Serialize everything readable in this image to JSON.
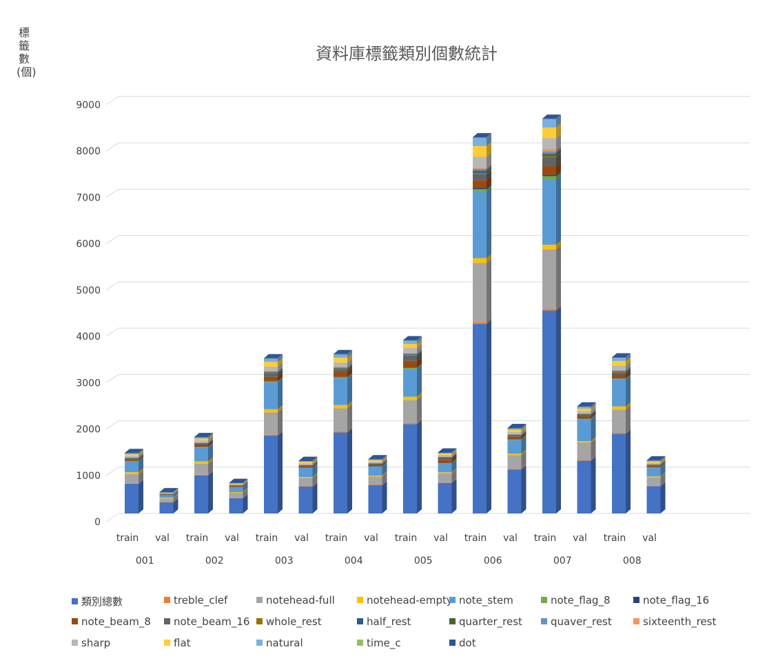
{
  "chart_data": {
    "type": "bar",
    "stacked": true,
    "title": "資料庫標籤類別個數統計",
    "ylabel": "標籤數(個)",
    "ylim": [
      0,
      9000
    ],
    "yticks": [
      0,
      1000,
      2000,
      3000,
      4000,
      5000,
      6000,
      7000,
      8000,
      9000
    ],
    "grid": true,
    "legend_position": "bottom",
    "groups": [
      "001",
      "002",
      "003",
      "004",
      "005",
      "006",
      "007",
      "008"
    ],
    "categories": [
      "train",
      "val",
      "train",
      "val",
      "train",
      "val",
      "train",
      "val",
      "train",
      "val",
      "train",
      "val",
      "train",
      "val",
      "train",
      "val"
    ],
    "series": [
      {
        "name": "類別總數",
        "color": "#4472c4",
        "values": [
          640,
          240,
          820,
          330,
          1680,
          580,
          1750,
          610,
          1930,
          660,
          4090,
          950,
          4380,
          1140,
          1720,
          590
        ]
      },
      {
        "name": "treble_clef",
        "color": "#ed7d31",
        "values": [
          10,
          5,
          15,
          6,
          20,
          8,
          20,
          8,
          20,
          8,
          40,
          10,
          40,
          12,
          20,
          8
        ]
      },
      {
        "name": "notehead-full",
        "color": "#a5a5a5",
        "values": [
          200,
          80,
          240,
          110,
          480,
          180,
          500,
          180,
          500,
          200,
          1280,
          300,
          1280,
          380,
          500,
          180
        ]
      },
      {
        "name": "notehead-empty",
        "color": "#ffc000",
        "values": [
          40,
          15,
          50,
          15,
          70,
          20,
          70,
          20,
          70,
          20,
          100,
          30,
          100,
          30,
          70,
          20
        ]
      },
      {
        "name": "note_stem",
        "color": "#5b9bd5",
        "values": [
          230,
          60,
          300,
          110,
          580,
          200,
          580,
          200,
          600,
          200,
          1430,
          300,
          1400,
          470,
          580,
          200
        ]
      },
      {
        "name": "note_flag_8",
        "color": "#70ad47",
        "values": [
          10,
          3,
          10,
          5,
          20,
          5,
          20,
          5,
          20,
          5,
          60,
          10,
          80,
          15,
          20,
          5
        ]
      },
      {
        "name": "note_flag_16",
        "color": "#264478",
        "values": [
          5,
          2,
          5,
          2,
          10,
          3,
          10,
          3,
          10,
          3,
          30,
          5,
          30,
          5,
          10,
          3
        ]
      },
      {
        "name": "note_beam_8",
        "color": "#9e480e",
        "values": [
          30,
          10,
          40,
          15,
          90,
          25,
          100,
          30,
          140,
          60,
          160,
          50,
          180,
          45,
          70,
          25
        ]
      },
      {
        "name": "note_beam_16",
        "color": "#636363",
        "values": [
          20,
          5,
          25,
          10,
          70,
          15,
          60,
          15,
          120,
          50,
          140,
          30,
          200,
          35,
          50,
          15
        ]
      },
      {
        "name": "whole_rest",
        "color": "#997300",
        "values": [
          5,
          2,
          5,
          2,
          10,
          3,
          10,
          3,
          10,
          3,
          20,
          5,
          20,
          5,
          10,
          3
        ]
      },
      {
        "name": "half_rest",
        "color": "#255e91",
        "values": [
          5,
          2,
          5,
          2,
          10,
          3,
          10,
          3,
          10,
          3,
          30,
          5,
          30,
          5,
          10,
          3
        ]
      },
      {
        "name": "quarter_rest",
        "color": "#43682b",
        "values": [
          5,
          2,
          5,
          2,
          10,
          3,
          10,
          3,
          10,
          3,
          20,
          5,
          30,
          5,
          10,
          3
        ]
      },
      {
        "name": "quaver_rest",
        "color": "#698ed0",
        "values": [
          10,
          3,
          10,
          5,
          20,
          5,
          20,
          5,
          20,
          5,
          40,
          10,
          50,
          10,
          20,
          5
        ]
      },
      {
        "name": "sixteenth_rest",
        "color": "#f1975a",
        "values": [
          5,
          2,
          5,
          2,
          10,
          3,
          10,
          3,
          10,
          3,
          30,
          5,
          50,
          5,
          10,
          3
        ]
      },
      {
        "name": "sharp",
        "color": "#b7b7b7",
        "values": [
          30,
          10,
          40,
          15,
          90,
          30,
          90,
          30,
          100,
          35,
          230,
          45,
          230,
          50,
          90,
          30
        ]
      },
      {
        "name": "flat",
        "color": "#ffcd33",
        "values": [
          30,
          10,
          40,
          15,
          100,
          30,
          100,
          30,
          90,
          35,
          230,
          45,
          230,
          50,
          100,
          30
        ]
      },
      {
        "name": "natural",
        "color": "#7cafdd",
        "values": [
          20,
          5,
          25,
          10,
          70,
          20,
          70,
          20,
          70,
          20,
          180,
          35,
          180,
          45,
          70,
          20
        ]
      },
      {
        "name": "time_c",
        "color": "#8cc168",
        "values": [
          5,
          2,
          5,
          2,
          5,
          2,
          5,
          2,
          5,
          2,
          5,
          2,
          5,
          2,
          5,
          2
        ]
      },
      {
        "name": "dot",
        "color": "#2f5597",
        "values": [
          5,
          2,
          5,
          2,
          5,
          2,
          5,
          2,
          5,
          2,
          5,
          2,
          5,
          2,
          5,
          2
        ]
      }
    ]
  }
}
